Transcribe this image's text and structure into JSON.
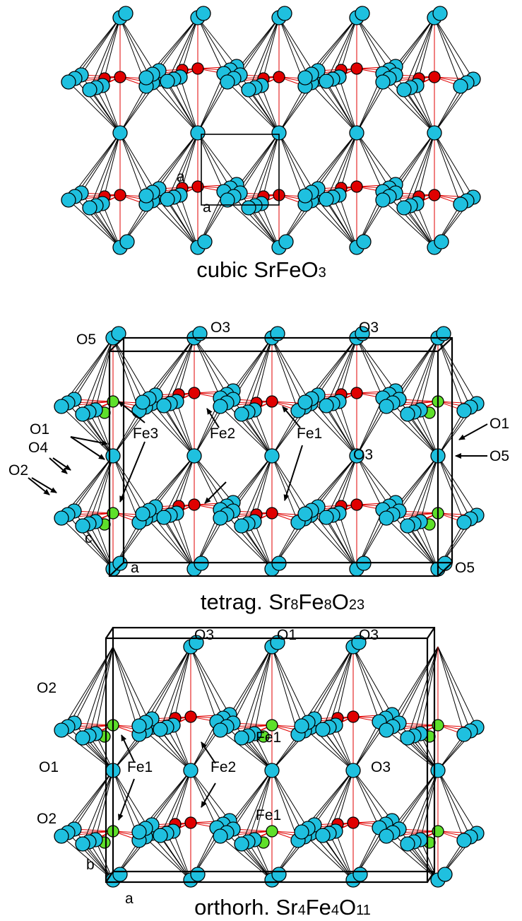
{
  "panels": [
    {
      "caption": [
        "cubic SrFeO",
        "3"
      ],
      "labels": [
        "a",
        "a"
      ]
    },
    {
      "caption": [
        "tetrag. Sr",
        "8",
        "Fe",
        "8",
        "O",
        "23"
      ],
      "labels": [
        "O5",
        "O3",
        "O3",
        "O1",
        "Fe3",
        "Fe2",
        "Fe1",
        "O1",
        "O5",
        "O4",
        "O2",
        "O3",
        "c",
        "a",
        "O5"
      ]
    },
    {
      "caption": [
        "orthorh. Sr",
        "4",
        "Fe",
        "4",
        "O",
        "11"
      ],
      "labels": [
        "O3",
        "O1",
        "O3",
        "O2",
        "Fe1",
        "Fe1",
        "Fe2",
        "O1",
        "O3",
        "Fe1",
        "O2",
        "b",
        "a"
      ]
    }
  ]
}
